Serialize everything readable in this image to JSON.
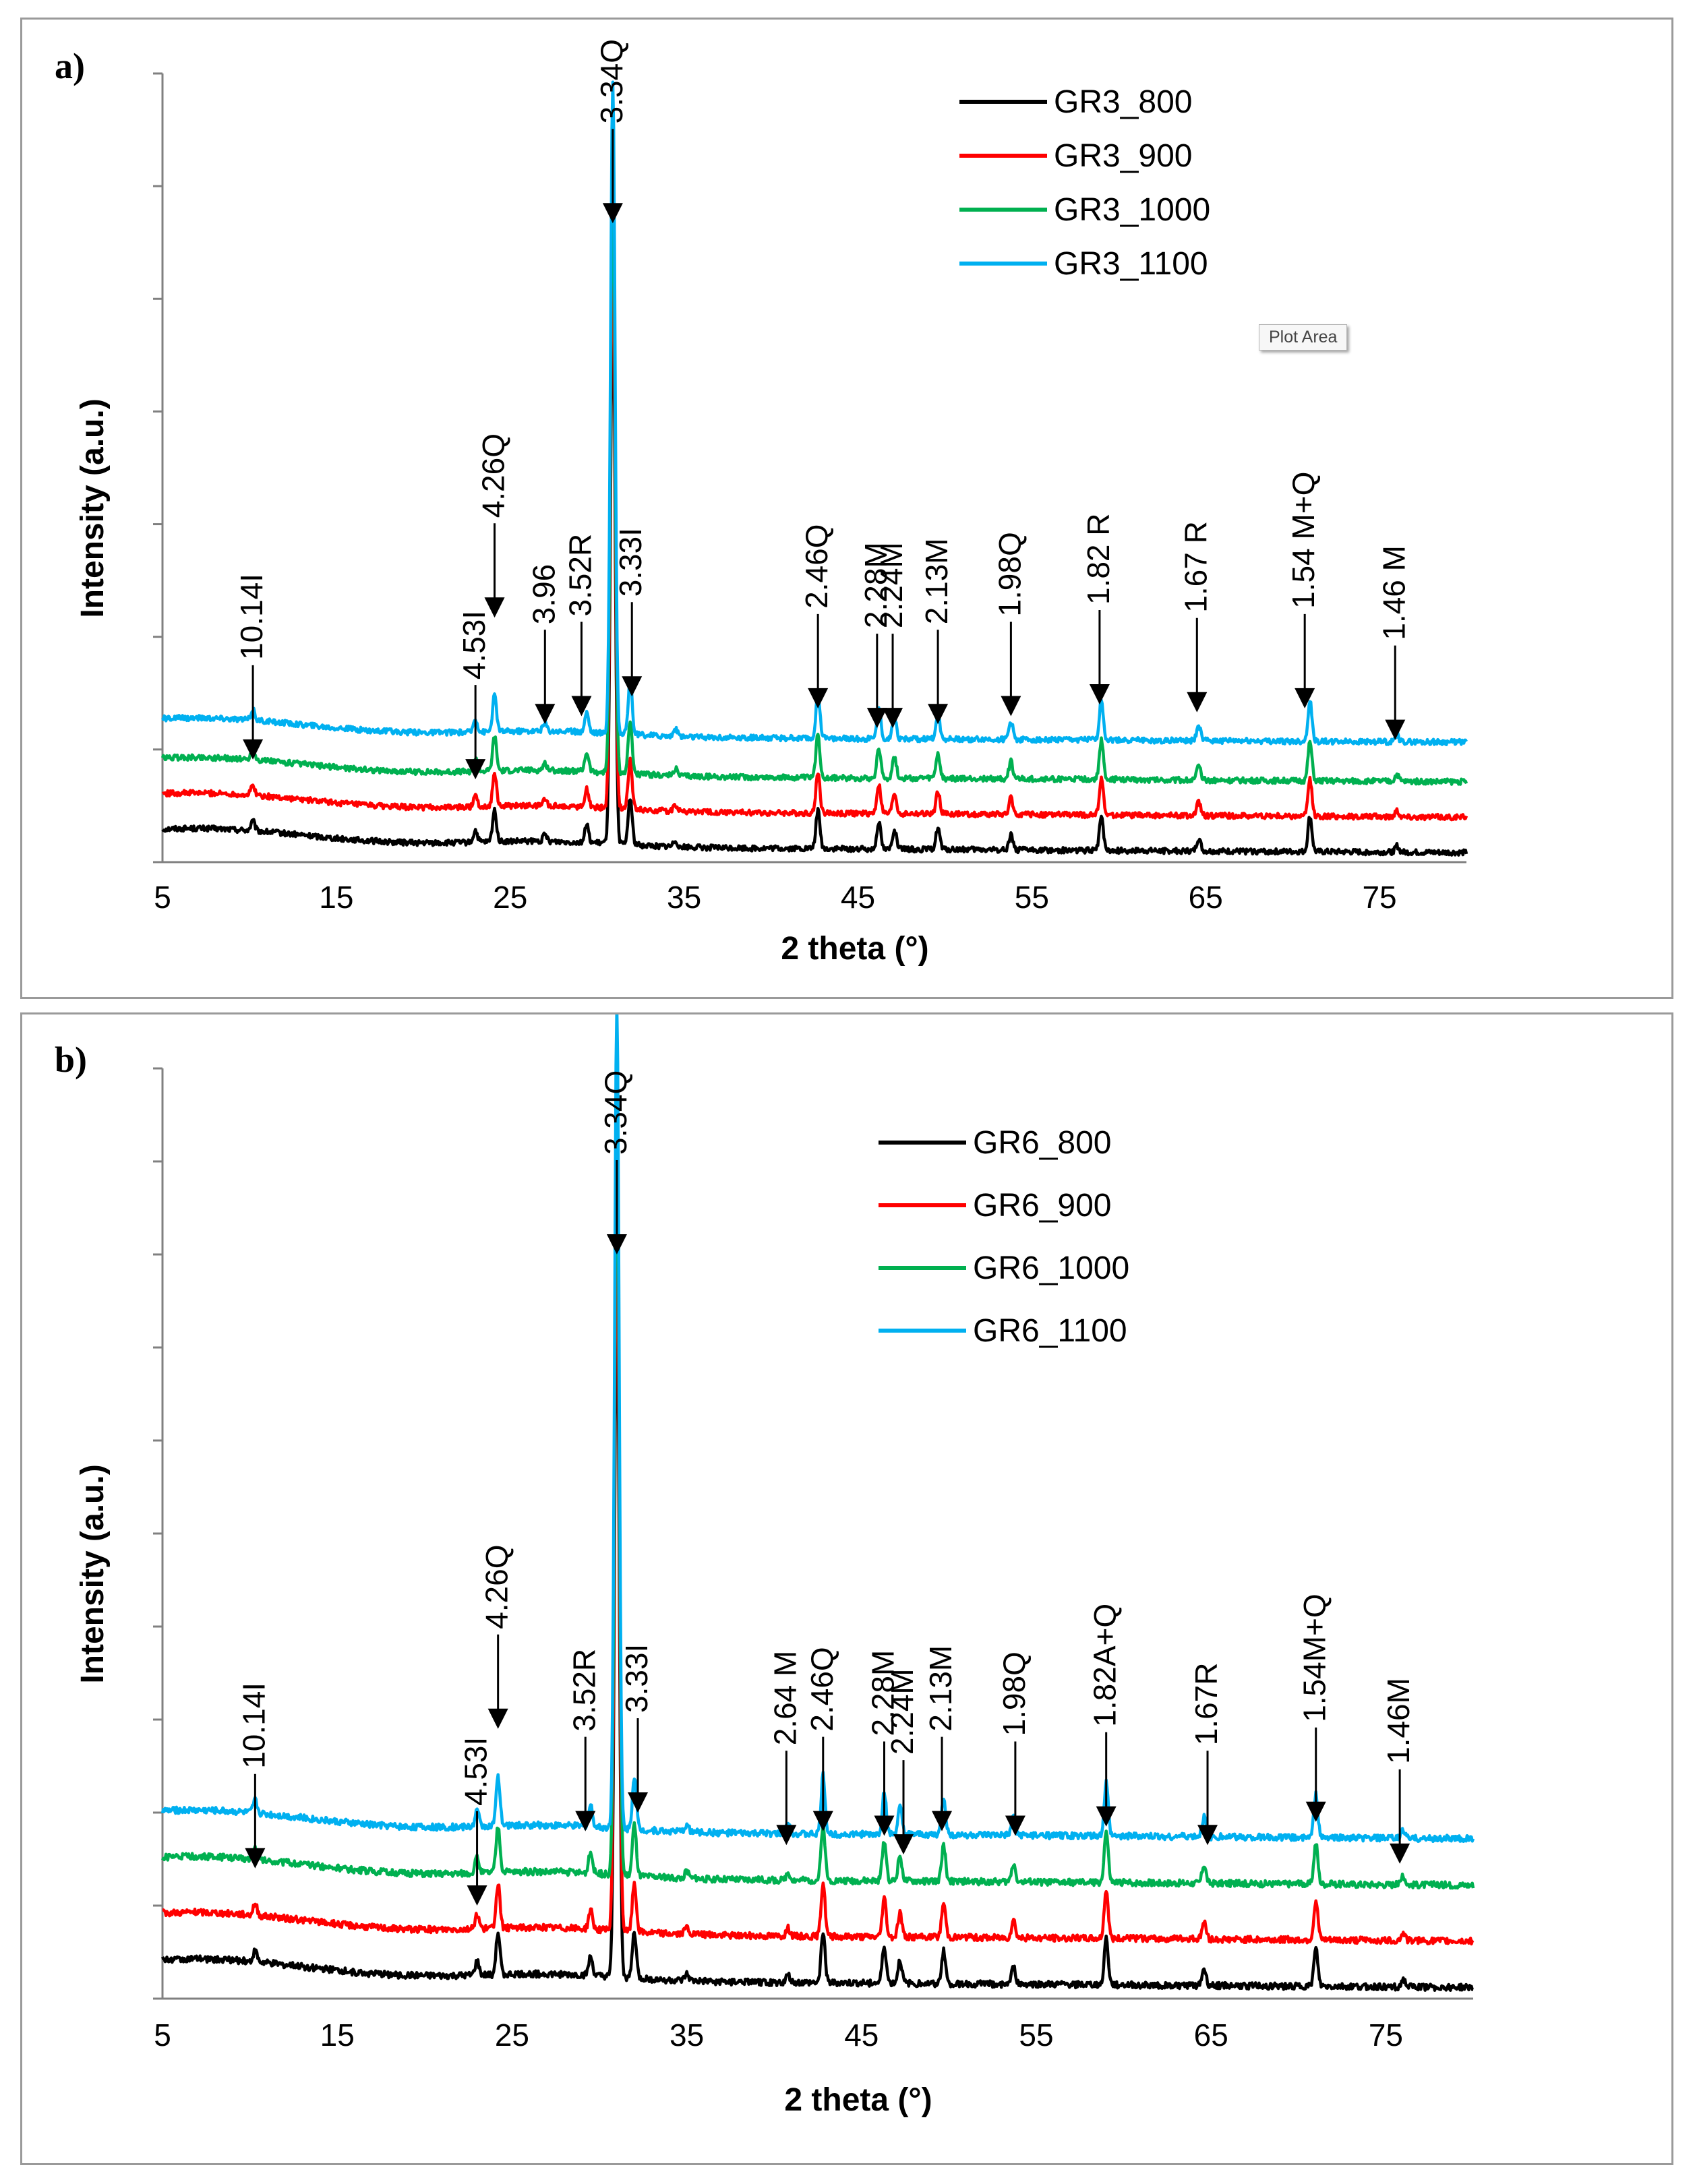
{
  "chart_data": [
    {
      "type": "line",
      "panel_label": "a)",
      "xlabel": "2 theta (°)",
      "ylabel": "Intensity (a.u.)",
      "xlim": [
        5,
        80
      ],
      "xticks": [
        5,
        15,
        25,
        35,
        45,
        55,
        65,
        75
      ],
      "ylim": [
        0,
        100
      ],
      "legend_position": "top-center",
      "tooltip": "Plot Area",
      "baseline_start": 8,
      "series": [
        {
          "name": "GR3_800",
          "color": "#000000",
          "offset": 0,
          "scale": 1.0
        },
        {
          "name": "GR3_900",
          "color": "#ff0000",
          "offset": 4.5,
          "scale": 1.05
        },
        {
          "name": "GR3_1000",
          "color": "#00b050",
          "offset": 9,
          "scale": 1.1
        },
        {
          "name": "GR3_1100",
          "color": "#00b0f0",
          "offset": 14,
          "scale": 1.15
        }
      ],
      "peaks": [
        {
          "x": 10.2,
          "h": 1.2
        },
        {
          "x": 23.0,
          "h": 1.5
        },
        {
          "x": 24.1,
          "h": 4.0
        },
        {
          "x": 27.0,
          "h": 0.8
        },
        {
          "x": 29.4,
          "h": 2.2
        },
        {
          "x": 30.9,
          "h": 72
        },
        {
          "x": 31.9,
          "h": 6.0
        },
        {
          "x": 34.5,
          "h": 0.8
        },
        {
          "x": 42.7,
          "h": 5.0
        },
        {
          "x": 46.2,
          "h": 3.5
        },
        {
          "x": 47.1,
          "h": 2.5
        },
        {
          "x": 49.6,
          "h": 2.8
        },
        {
          "x": 53.8,
          "h": 2.0
        },
        {
          "x": 59.0,
          "h": 4.5
        },
        {
          "x": 64.6,
          "h": 1.6
        },
        {
          "x": 71.0,
          "h": 4.5
        },
        {
          "x": 76.0,
          "h": 0.8
        }
      ],
      "annotations": [
        {
          "text": "10.14I",
          "x": 10.2,
          "yArrow": 13
        },
        {
          "text": "4.53I",
          "x": 23.0,
          "yArrow": 10.5
        },
        {
          "text": "4.26Q",
          "x": 24.1,
          "yArrow": 31
        },
        {
          "text": "3.96",
          "x": 27.0,
          "yArrow": 17.5
        },
        {
          "text": "3.52R",
          "x": 29.1,
          "yArrow": 18.5
        },
        {
          "text": "3.34Q",
          "x": 30.9,
          "yArrow": 81
        },
        {
          "text": "3.33I",
          "x": 32.0,
          "yArrow": 21
        },
        {
          "text": "2.46Q",
          "x": 42.7,
          "yArrow": 19.5
        },
        {
          "text": "2.28M",
          "x": 46.1,
          "yArrow": 17
        },
        {
          "text": "2.24M",
          "x": 47.0,
          "yArrow": 17
        },
        {
          "text": "2.13M",
          "x": 49.6,
          "yArrow": 17.5
        },
        {
          "text": "1.98Q",
          "x": 53.8,
          "yArrow": 18.5
        },
        {
          "text": "1.82 R",
          "x": 58.9,
          "yArrow": 20
        },
        {
          "text": "1.67 R",
          "x": 64.5,
          "yArrow": 19
        },
        {
          "text": "1.54 M+Q",
          "x": 70.7,
          "yArrow": 19.5
        },
        {
          "text": "1.46 M",
          "x": 75.9,
          "yArrow": 15.5
        }
      ]
    },
    {
      "type": "line",
      "panel_label": "b)",
      "xlabel": "2 theta (°)",
      "ylabel": "Intensity (a.u.)",
      "xlim": [
        5,
        80
      ],
      "xticks": [
        5,
        15,
        25,
        35,
        45,
        55,
        65,
        75
      ],
      "ylim": [
        0,
        100
      ],
      "legend_position": "top-center",
      "baseline_start": 8,
      "series": [
        {
          "name": "GR6_800",
          "color": "#000000",
          "offset": 0,
          "scale": 1.0
        },
        {
          "name": "GR6_900",
          "color": "#ff0000",
          "offset": 5,
          "scale": 1.05
        },
        {
          "name": "GR6_1000",
          "color": "#00b050",
          "offset": 11,
          "scale": 1.1
        },
        {
          "name": "GR6_1100",
          "color": "#00b0f0",
          "offset": 16,
          "scale": 1.15
        }
      ],
      "peaks": [
        {
          "x": 10.3,
          "h": 1.2
        },
        {
          "x": 23.0,
          "h": 1.5
        },
        {
          "x": 24.2,
          "h": 4.5
        },
        {
          "x": 29.5,
          "h": 2.0
        },
        {
          "x": 31.0,
          "h": 77
        },
        {
          "x": 32.0,
          "h": 5.0
        },
        {
          "x": 35.0,
          "h": 0.7
        },
        {
          "x": 40.8,
          "h": 0.8
        },
        {
          "x": 42.8,
          "h": 5.5
        },
        {
          "x": 46.3,
          "h": 4.0
        },
        {
          "x": 47.2,
          "h": 2.5
        },
        {
          "x": 49.7,
          "h": 3.5
        },
        {
          "x": 53.7,
          "h": 1.8
        },
        {
          "x": 59.0,
          "h": 5.0
        },
        {
          "x": 64.6,
          "h": 1.8
        },
        {
          "x": 71.0,
          "h": 4.0
        },
        {
          "x": 76.0,
          "h": 0.8
        }
      ],
      "annotations": [
        {
          "text": "10.14I",
          "x": 10.3,
          "yArrow": 14
        },
        {
          "text": "4.53I",
          "x": 23.0,
          "yArrow": 10
        },
        {
          "text": "4.26Q",
          "x": 24.2,
          "yArrow": 29
        },
        {
          "text": "3.52R",
          "x": 29.2,
          "yArrow": 18
        },
        {
          "text": "3.34Q",
          "x": 31.0,
          "yArrow": 80
        },
        {
          "text": "3.33I",
          "x": 32.2,
          "yArrow": 20
        },
        {
          "text": "2.64 M",
          "x": 40.7,
          "yArrow": 16.5
        },
        {
          "text": "2.46Q",
          "x": 42.8,
          "yArrow": 18
        },
        {
          "text": "2.28M",
          "x": 46.3,
          "yArrow": 17.5
        },
        {
          "text": "2.24M",
          "x": 47.4,
          "yArrow": 15.5
        },
        {
          "text": "2.13M",
          "x": 49.6,
          "yArrow": 18
        },
        {
          "text": "1.98Q",
          "x": 53.8,
          "yArrow": 17.5
        },
        {
          "text": "1.82A+Q",
          "x": 59.0,
          "yArrow": 18.5
        },
        {
          "text": "1.67R",
          "x": 64.8,
          "yArrow": 16.5
        },
        {
          "text": "1.54M+Q",
          "x": 71.0,
          "yArrow": 19
        },
        {
          "text": "1.46M",
          "x": 75.8,
          "yArrow": 14.5
        }
      ]
    }
  ]
}
